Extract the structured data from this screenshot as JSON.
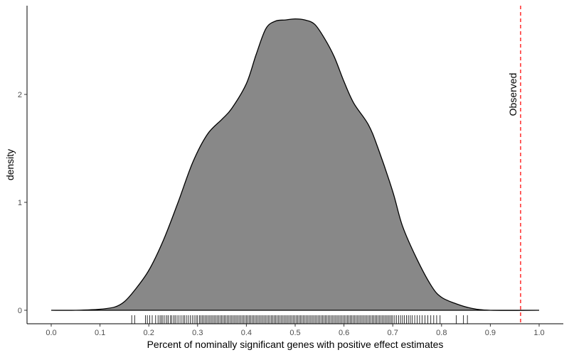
{
  "chart_data": {
    "type": "area",
    "subtype": "density",
    "title": "",
    "xlabel": "Percent of nominally significant genes with positive effect estimates",
    "ylabel": "density",
    "xlim": [
      -0.05,
      1.05
    ],
    "ylim": [
      -0.12,
      2.84
    ],
    "x_ticks": [
      0.0,
      0.1,
      0.2,
      0.3,
      0.4,
      0.5,
      0.6,
      0.7,
      0.8,
      0.9,
      1.0
    ],
    "x_tick_labels": [
      "0.0",
      "0.1",
      "0.2",
      "0.3",
      "0.4",
      "0.5",
      "0.6",
      "0.7",
      "0.8",
      "0.9",
      "1.0"
    ],
    "y_ticks": [
      0,
      1,
      2
    ],
    "y_tick_labels": [
      "0",
      "1",
      "2"
    ],
    "grid": false,
    "legend": "none",
    "fill_color": "#888888",
    "series": [
      {
        "x": [
          0.0,
          0.05,
          0.1,
          0.13,
          0.15,
          0.17,
          0.2,
          0.23,
          0.26,
          0.29,
          0.32,
          0.35,
          0.37,
          0.4,
          0.42,
          0.44,
          0.46,
          0.48,
          0.5,
          0.52,
          0.54,
          0.56,
          0.58,
          0.6,
          0.62,
          0.65,
          0.67,
          0.7,
          0.72,
          0.75,
          0.78,
          0.8,
          0.83,
          0.86,
          0.9,
          1.0
        ],
        "y": [
          0.0,
          0.0,
          0.01,
          0.03,
          0.08,
          0.18,
          0.37,
          0.65,
          1.0,
          1.37,
          1.63,
          1.77,
          1.87,
          2.1,
          2.37,
          2.61,
          2.68,
          2.69,
          2.7,
          2.69,
          2.65,
          2.52,
          2.35,
          2.12,
          1.92,
          1.72,
          1.5,
          1.1,
          0.78,
          0.47,
          0.22,
          0.12,
          0.06,
          0.02,
          0.0,
          0.0
        ]
      }
    ],
    "rug_x": [
      0.165,
      0.171,
      0.193,
      0.197,
      0.202,
      0.207,
      0.214,
      0.219,
      0.223,
      0.226,
      0.229,
      0.233,
      0.237,
      0.24,
      0.244,
      0.247,
      0.251,
      0.254,
      0.258,
      0.262,
      0.266,
      0.27,
      0.273,
      0.277,
      0.281,
      0.285,
      0.289,
      0.293,
      0.297,
      0.3,
      0.304,
      0.307,
      0.31,
      0.313,
      0.316,
      0.319,
      0.322,
      0.325,
      0.328,
      0.331,
      0.334,
      0.337,
      0.34,
      0.343,
      0.346,
      0.349,
      0.352,
      0.355,
      0.358,
      0.361,
      0.364,
      0.367,
      0.37,
      0.373,
      0.376,
      0.379,
      0.382,
      0.385,
      0.388,
      0.391,
      0.394,
      0.397,
      0.4,
      0.403,
      0.406,
      0.409,
      0.412,
      0.415,
      0.418,
      0.421,
      0.424,
      0.427,
      0.43,
      0.433,
      0.436,
      0.439,
      0.442,
      0.445,
      0.448,
      0.451,
      0.454,
      0.457,
      0.46,
      0.463,
      0.466,
      0.469,
      0.472,
      0.475,
      0.478,
      0.481,
      0.484,
      0.487,
      0.49,
      0.493,
      0.496,
      0.499,
      0.502,
      0.505,
      0.508,
      0.511,
      0.514,
      0.517,
      0.52,
      0.523,
      0.526,
      0.529,
      0.532,
      0.535,
      0.538,
      0.541,
      0.544,
      0.547,
      0.55,
      0.553,
      0.556,
      0.559,
      0.562,
      0.565,
      0.568,
      0.571,
      0.574,
      0.577,
      0.58,
      0.583,
      0.586,
      0.589,
      0.592,
      0.595,
      0.598,
      0.601,
      0.604,
      0.607,
      0.61,
      0.613,
      0.616,
      0.619,
      0.622,
      0.625,
      0.628,
      0.631,
      0.634,
      0.637,
      0.64,
      0.643,
      0.646,
      0.649,
      0.652,
      0.655,
      0.658,
      0.661,
      0.664,
      0.667,
      0.67,
      0.673,
      0.676,
      0.679,
      0.682,
      0.685,
      0.688,
      0.691,
      0.694,
      0.697,
      0.7,
      0.704,
      0.708,
      0.712,
      0.716,
      0.72,
      0.724,
      0.728,
      0.732,
      0.736,
      0.74,
      0.745,
      0.75,
      0.755,
      0.76,
      0.766,
      0.772,
      0.778,
      0.784,
      0.79,
      0.797,
      0.83,
      0.845,
      0.853
    ],
    "reference_line": {
      "x": 0.962,
      "color": "#ff2a2a",
      "style": "dashed",
      "label": "Observed"
    }
  }
}
